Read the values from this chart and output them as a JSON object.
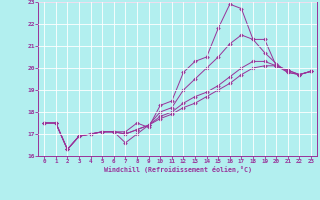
{
  "bg_color": "#b2efef",
  "grid_color": "#ffffff",
  "line_color": "#993399",
  "xlabel": "Windchill (Refroidissement éolien,°C)",
  "xlim": [
    -0.5,
    23.5
  ],
  "ylim": [
    16,
    23
  ],
  "yticks": [
    16,
    17,
    18,
    19,
    20,
    21,
    22,
    23
  ],
  "xticks": [
    0,
    1,
    2,
    3,
    4,
    5,
    6,
    7,
    8,
    9,
    10,
    11,
    12,
    13,
    14,
    15,
    16,
    17,
    18,
    19,
    20,
    21,
    22,
    23
  ],
  "series": [
    [
      17.5,
      17.5,
      16.3,
      16.9,
      17.0,
      17.1,
      17.1,
      17.1,
      17.5,
      17.3,
      18.3,
      18.5,
      19.8,
      20.3,
      20.5,
      21.8,
      22.9,
      22.7,
      21.3,
      21.3,
      20.1,
      19.8,
      19.7,
      19.85
    ],
    [
      17.5,
      17.5,
      16.3,
      16.9,
      17.0,
      17.1,
      17.1,
      16.6,
      17.0,
      17.4,
      18.0,
      18.2,
      19.0,
      19.5,
      20.0,
      20.5,
      21.1,
      21.5,
      21.3,
      20.7,
      20.2,
      19.8,
      19.7,
      19.85
    ],
    [
      17.5,
      17.5,
      16.3,
      16.9,
      17.0,
      17.1,
      17.1,
      17.0,
      17.2,
      17.4,
      17.8,
      18.0,
      18.4,
      18.7,
      18.9,
      19.2,
      19.6,
      20.0,
      20.3,
      20.3,
      20.1,
      19.9,
      19.7,
      19.85
    ],
    [
      17.5,
      17.5,
      16.3,
      16.9,
      17.0,
      17.1,
      17.1,
      17.0,
      17.2,
      17.4,
      17.7,
      17.9,
      18.2,
      18.4,
      18.7,
      19.0,
      19.3,
      19.7,
      20.0,
      20.1,
      20.1,
      19.9,
      19.7,
      19.85
    ]
  ]
}
